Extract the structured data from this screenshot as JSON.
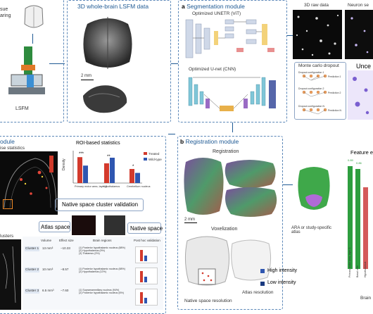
{
  "top_left": {
    "label_line1": "sue",
    "label_line2": "aring",
    "lsfm_label": "LSFM"
  },
  "lsfm_panel": {
    "title": "3D whole-brain LSFM data",
    "scale_bar": "2 mm"
  },
  "segmentation": {
    "panel_letter": "a",
    "title": "Segmentation module",
    "vit_label": "Optimized UNETR (ViT)",
    "cnn_label": "Optimized U-net (CNN)",
    "raw_data_label": "3D raw data",
    "neuron_label": "Neuron se",
    "uncertainty_label": "Unce",
    "dropout": {
      "title": "Monte carlo dropout",
      "configs": [
        "Dropout configuration 1",
        "Dropout configuration 2",
        "Dropout configuration N"
      ],
      "predictions": [
        "Prediction 1",
        "Prediction 2",
        "Prediction N"
      ]
    }
  },
  "stats": {
    "title": "odule",
    "subtitle": "ise statistics",
    "roi_title": "ROI-based statistics",
    "density_label": "Density",
    "legend": [
      "Treated",
      "Wild-type"
    ],
    "categories": [
      "Primary motor area, layer 5",
      "Hypothalamus",
      "Cerebellum nucleus"
    ],
    "significance": [
      "***",
      "**",
      "*"
    ],
    "clusters_label": "lusters",
    "native_validation": "Native space cluster validation",
    "atlas_space": "Atlas space",
    "native_space": "Native space",
    "table": {
      "headers": [
        "Volume",
        "Effect size",
        "Brain regions",
        "Post hoc validation"
      ],
      "rows": [
        {
          "name": "Cluster 1",
          "volume": "13 mm³",
          "effect": "−10.33",
          "regions": "(1) Posterior hypothalamic nucleus (88%)\n(2) Hypothalamus (9%)\n(3) Thalamus (3%)"
        },
        {
          "name": "Cluster 2",
          "volume": "10 mm³",
          "effect": "−8.57",
          "regions": "(1) Posterior hypothalamic nucleus (88%)\n(2) Hypothalamus (12%)"
        },
        {
          "name": "Cluster 3",
          "volume": "6.5 mm³",
          "effect": "−7.60",
          "regions": "(1) Supramammillary nucleus (94%)\n(2) Posterior hypothalamic nucleus (6%)"
        }
      ]
    }
  },
  "registration": {
    "panel_letter": "b",
    "title": "Registration module",
    "registration_label": "Registration",
    "scale_bar": "2 mm",
    "voxelization_label": "Voxelization",
    "atlas_caption": "ARA or study-specific atlas",
    "high_intensity": "High intensity",
    "low_intensity": "Low intensity",
    "atlas_resolution": "Atlas resolution",
    "native_resolution": "Native space resolution",
    "feature_label": "Feature e",
    "bar_values": [
      "0.89",
      "0.86"
    ],
    "feature_categories": [
      "Primary motor area, layer 5",
      "Basal cells",
      "Hypothalamus"
    ],
    "brain_label": "Brain"
  },
  "colors": {
    "accent": "#1f5a94",
    "panel_border": "#5b87b8",
    "treated": "#d33a2c",
    "wildtype": "#2f56b0",
    "green_bar": "#2e9e3f"
  }
}
